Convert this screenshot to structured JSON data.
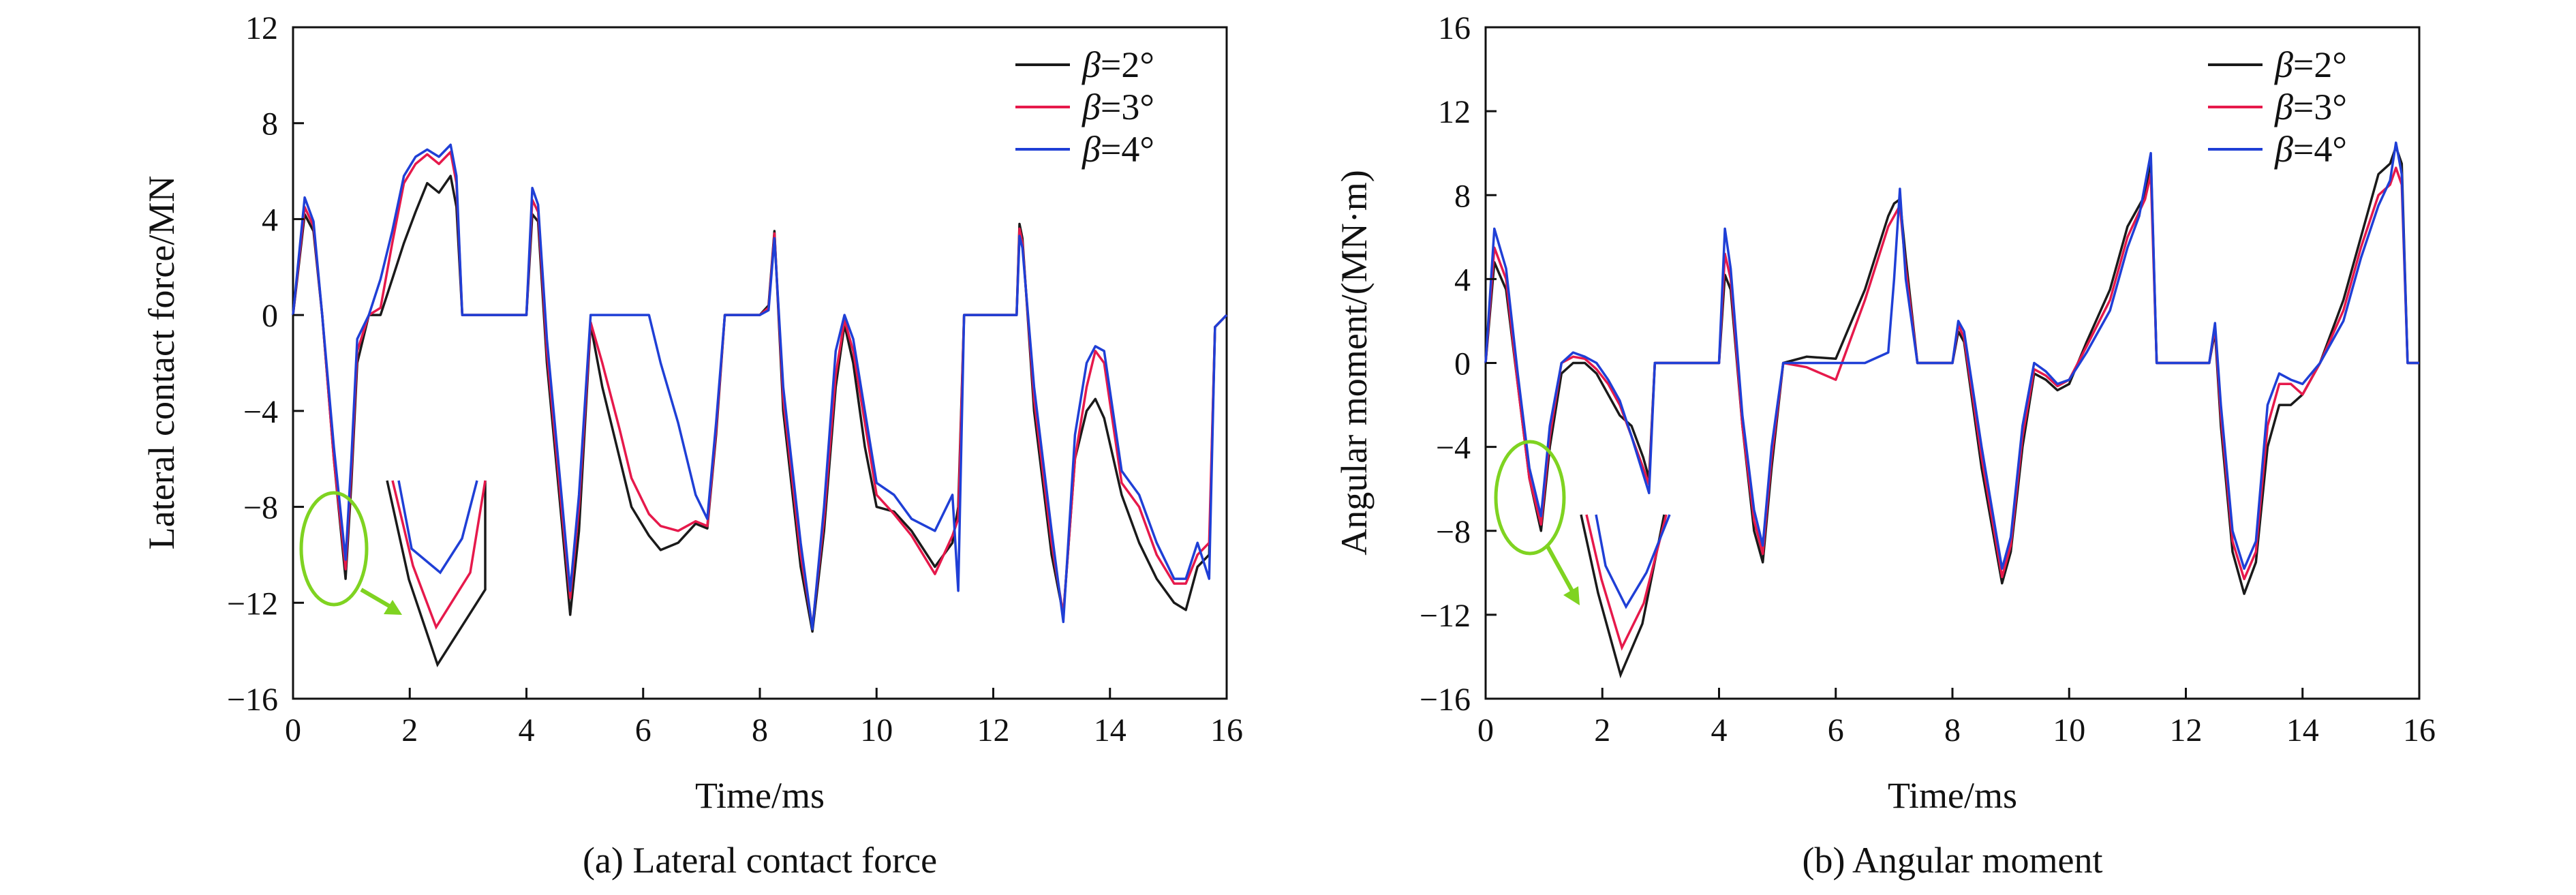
{
  "colors": {
    "s2": "#1a1a1a",
    "s3": "#e6194b",
    "s4": "#1f3fd6",
    "highlight": "#7fd321"
  },
  "chart_data": [
    {
      "type": "line",
      "caption": "(a) Lateral contact force",
      "xlabel": "Time/ms",
      "ylabel": "Lateral contact force/MN",
      "xlim": [
        0,
        16
      ],
      "ylim": [
        -16,
        12
      ],
      "xticks": [
        0,
        2,
        4,
        6,
        8,
        10,
        12,
        14,
        16
      ],
      "yticks": [
        -16,
        -12,
        -8,
        -4,
        0,
        4,
        8,
        12
      ],
      "legend_position": "top-right",
      "series": [
        {
          "name": "β=2°",
          "color": "#1a1a1a",
          "x": [
            0,
            0.2,
            0.35,
            0.5,
            0.7,
            0.9,
            1.0,
            1.1,
            1.3,
            1.5,
            1.7,
            1.9,
            2.1,
            2.3,
            2.5,
            2.7,
            2.8,
            2.9,
            3.0,
            3.5,
            4.0,
            4.1,
            4.2,
            4.35,
            4.6,
            4.75,
            4.9,
            5.1,
            5.3,
            5.6,
            5.8,
            6.1,
            6.3,
            6.6,
            6.9,
            7.1,
            7.25,
            7.4,
            8.0,
            8.15,
            8.25,
            8.4,
            8.7,
            8.9,
            9.1,
            9.3,
            9.45,
            9.6,
            9.8,
            10.0,
            10.3,
            10.6,
            11.0,
            11.3,
            11.4,
            11.5,
            12.0,
            12.4,
            12.45,
            12.5,
            12.7,
            13.0,
            13.2,
            13.4,
            13.6,
            13.75,
            13.9,
            14.2,
            14.5,
            14.8,
            15.1,
            15.3,
            15.5,
            15.7,
            15.8,
            16.0
          ],
          "y": [
            0,
            4.2,
            3.5,
            0,
            -6,
            -11,
            -7,
            -2,
            0,
            0,
            1.5,
            3,
            4.3,
            5.5,
            5.1,
            5.8,
            4.5,
            0,
            0,
            0,
            0,
            4.2,
            3.9,
            -2,
            -8.5,
            -12.5,
            -9,
            -0.4,
            -3,
            -6,
            -8,
            -9.2,
            -9.8,
            -9.5,
            -8.7,
            -8.9,
            -5,
            0,
            0,
            0.4,
            3.5,
            -4,
            -10.5,
            -13.2,
            -9,
            -3,
            -0.4,
            -2,
            -5.5,
            -8,
            -8.2,
            -9,
            -10.5,
            -9.5,
            -8,
            0,
            0,
            0,
            3.8,
            3.2,
            -4,
            -10,
            -12.5,
            -6,
            -4,
            -3.5,
            -4.3,
            -7.5,
            -9.5,
            -11,
            -12,
            -12.3,
            -10.5,
            -10,
            -0.5,
            0
          ]
        },
        {
          "name": "β=3°",
          "color": "#e6194b",
          "x": [
            0,
            0.2,
            0.35,
            0.5,
            0.7,
            0.9,
            1.0,
            1.1,
            1.3,
            1.5,
            1.7,
            1.9,
            2.1,
            2.3,
            2.5,
            2.7,
            2.8,
            2.9,
            3.0,
            3.5,
            4.0,
            4.1,
            4.2,
            4.35,
            4.6,
            4.75,
            4.9,
            5.1,
            5.3,
            5.6,
            5.8,
            6.1,
            6.3,
            6.6,
            6.9,
            7.1,
            7.25,
            7.4,
            8.0,
            8.15,
            8.25,
            8.4,
            8.7,
            8.9,
            9.1,
            9.3,
            9.45,
            9.6,
            9.8,
            10.0,
            10.3,
            10.6,
            11.0,
            11.3,
            11.4,
            11.5,
            12.0,
            12.4,
            12.45,
            12.5,
            12.7,
            13.0,
            13.2,
            13.4,
            13.6,
            13.75,
            13.9,
            14.2,
            14.5,
            14.8,
            15.1,
            15.3,
            15.5,
            15.7,
            15.8,
            16.0
          ],
          "y": [
            0,
            4.5,
            3.7,
            0,
            -6,
            -10.6,
            -6.5,
            -1.5,
            0,
            0.3,
            3,
            5.5,
            6.3,
            6.7,
            6.3,
            6.8,
            5.5,
            0,
            0,
            0,
            0,
            4.8,
            4.3,
            -1.5,
            -8,
            -11.8,
            -8,
            -0.3,
            -2,
            -4.8,
            -6.8,
            -8.3,
            -8.8,
            -9,
            -8.6,
            -8.8,
            -4.8,
            0,
            0,
            0.3,
            3.4,
            -3.5,
            -10,
            -13,
            -8.5,
            -2.5,
            -0.2,
            -1.5,
            -4.5,
            -7.5,
            -8.3,
            -9.2,
            -10.8,
            -9.2,
            -8.5,
            0,
            0,
            0,
            3.6,
            3,
            -3.5,
            -9.5,
            -12.5,
            -6,
            -3,
            -1.5,
            -2,
            -7,
            -8,
            -10,
            -11.2,
            -11.2,
            -10,
            -9.5,
            -0.5,
            0
          ]
        },
        {
          "name": "β=4°",
          "color": "#1f3fd6",
          "x": [
            0,
            0.2,
            0.35,
            0.5,
            0.7,
            0.9,
            1.0,
            1.1,
            1.3,
            1.5,
            1.7,
            1.9,
            2.1,
            2.3,
            2.5,
            2.7,
            2.8,
            2.9,
            3.0,
            3.5,
            4.0,
            4.1,
            4.2,
            4.35,
            4.6,
            4.75,
            4.9,
            5.1,
            5.3,
            5.6,
            5.8,
            6.1,
            6.3,
            6.6,
            6.9,
            7.1,
            7.25,
            7.4,
            8.0,
            8.15,
            8.25,
            8.4,
            8.7,
            8.9,
            9.1,
            9.3,
            9.45,
            9.6,
            9.8,
            10.0,
            10.3,
            10.6,
            11.0,
            11.3,
            11.4,
            11.5,
            12.0,
            12.4,
            12.45,
            12.5,
            12.7,
            13.0,
            13.2,
            13.4,
            13.6,
            13.75,
            13.9,
            14.2,
            14.5,
            14.8,
            15.1,
            15.3,
            15.5,
            15.7,
            15.8,
            16.0
          ],
          "y": [
            0,
            4.9,
            3.9,
            0,
            -5.5,
            -10.2,
            -6,
            -1,
            0,
            1.5,
            3.5,
            5.8,
            6.6,
            6.9,
            6.6,
            7.1,
            5.8,
            0,
            0,
            0,
            0,
            5.3,
            4.6,
            -1,
            -7.5,
            -11.5,
            -7.5,
            0,
            0,
            0,
            0,
            0,
            -2,
            -4.5,
            -7.5,
            -8.5,
            -4.5,
            0,
            0,
            0.2,
            3.2,
            -3,
            -9.5,
            -13.1,
            -8,
            -1.5,
            0,
            -1,
            -4,
            -7,
            -7.5,
            -8.5,
            -9,
            -7.5,
            -11.5,
            0,
            0,
            0,
            3.3,
            2.8,
            -3,
            -9,
            -12.8,
            -5,
            -2,
            -1.3,
            -1.5,
            -6.5,
            -7.5,
            -9.5,
            -11,
            -11,
            -9.5,
            -11,
            -0.5,
            0
          ]
        }
      ],
      "legend": [
        "β=2°",
        "β=3°",
        "β=4°"
      ]
    },
    {
      "type": "line",
      "caption": "(b) Angular moment",
      "xlabel": "Time/ms",
      "ylabel": "Angular moment/(MN·m)",
      "xlim": [
        0,
        16
      ],
      "ylim": [
        -16,
        16
      ],
      "xticks": [
        0,
        2,
        4,
        6,
        8,
        10,
        12,
        14,
        16
      ],
      "yticks": [
        -16,
        -12,
        -8,
        -4,
        0,
        4,
        8,
        12,
        16
      ],
      "legend_position": "top-right",
      "series": [
        {
          "name": "β=2°",
          "color": "#1a1a1a",
          "x": [
            0,
            0.15,
            0.35,
            0.55,
            0.75,
            0.95,
            1.1,
            1.3,
            1.5,
            1.7,
            1.9,
            2.1,
            2.3,
            2.5,
            2.7,
            2.8,
            2.9,
            3.0,
            4.0,
            4.1,
            4.2,
            4.4,
            4.6,
            4.75,
            4.9,
            5.1,
            5.5,
            6.0,
            6.5,
            6.9,
            7.0,
            7.1,
            7.2,
            7.4,
            8.0,
            8.1,
            8.2,
            8.5,
            8.85,
            9.0,
            9.2,
            9.4,
            9.6,
            9.8,
            10.0,
            10.3,
            10.7,
            11.0,
            11.2,
            11.3,
            11.4,
            11.5,
            12.0,
            12.4,
            12.5,
            12.6,
            12.8,
            13.0,
            13.2,
            13.4,
            13.6,
            13.8,
            14.0,
            14.3,
            14.7,
            15.0,
            15.3,
            15.5,
            15.6,
            15.7,
            15.8,
            16.0
          ],
          "y": [
            0,
            4.8,
            3.5,
            -1,
            -5.5,
            -8,
            -4,
            -0.5,
            0,
            0,
            -0.5,
            -1.5,
            -2.5,
            -3,
            -4.5,
            -5.5,
            0,
            0,
            0,
            4.2,
            3.5,
            -3,
            -8,
            -9.5,
            -5,
            0,
            0.3,
            0.2,
            3.5,
            7,
            7.6,
            7.8,
            5,
            0,
            0,
            1.5,
            1,
            -5,
            -10.5,
            -9,
            -4,
            -0.5,
            -0.8,
            -1.3,
            -1,
            1,
            3.5,
            6.5,
            7.5,
            8,
            9.7,
            0,
            0,
            0,
            1.5,
            -3,
            -9,
            -11,
            -9.5,
            -4,
            -2,
            -2,
            -1.5,
            0,
            3,
            6,
            9,
            9.5,
            10.3,
            9.5,
            0,
            0
          ]
        },
        {
          "name": "β=3°",
          "color": "#e6194b",
          "x": [
            0,
            0.15,
            0.35,
            0.55,
            0.75,
            0.95,
            1.1,
            1.3,
            1.5,
            1.7,
            1.9,
            2.1,
            2.3,
            2.5,
            2.7,
            2.8,
            2.9,
            3.0,
            4.0,
            4.1,
            4.2,
            4.4,
            4.6,
            4.75,
            4.9,
            5.1,
            5.5,
            6.0,
            6.5,
            6.9,
            7.0,
            7.1,
            7.2,
            7.4,
            8.0,
            8.1,
            8.2,
            8.5,
            8.85,
            9.0,
            9.2,
            9.4,
            9.6,
            9.8,
            10.0,
            10.3,
            10.7,
            11.0,
            11.2,
            11.3,
            11.4,
            11.5,
            12.0,
            12.4,
            12.5,
            12.6,
            12.8,
            13.0,
            13.2,
            13.4,
            13.6,
            13.8,
            14.0,
            14.3,
            14.7,
            15.0,
            15.3,
            15.5,
            15.6,
            15.7,
            15.8,
            16.0
          ],
          "y": [
            0,
            5.5,
            4,
            -1,
            -5.5,
            -7.7,
            -3.5,
            0,
            0.3,
            0.2,
            -0.3,
            -1,
            -2,
            -3.5,
            -5,
            -5.8,
            0,
            0,
            0,
            5.2,
            4,
            -3,
            -7.5,
            -9.1,
            -4.5,
            0,
            -0.2,
            -0.8,
            3,
            6.5,
            7,
            7.5,
            4.5,
            0,
            0,
            1.8,
            1.2,
            -4.5,
            -10.2,
            -8.7,
            -3.5,
            -0.3,
            -0.6,
            -1.1,
            -0.8,
            0.8,
            3,
            6,
            7.2,
            7.8,
            9,
            0,
            0,
            0,
            1.7,
            -2.5,
            -8.5,
            -10.3,
            -9,
            -3,
            -1,
            -1,
            -1.5,
            0,
            2.5,
            5.5,
            8,
            8.5,
            9.3,
            8.5,
            0,
            0
          ]
        },
        {
          "name": "β=4°",
          "color": "#1f3fd6",
          "x": [
            0,
            0.15,
            0.35,
            0.55,
            0.75,
            0.95,
            1.1,
            1.3,
            1.5,
            1.7,
            1.9,
            2.1,
            2.3,
            2.5,
            2.7,
            2.8,
            2.9,
            3.0,
            4.0,
            4.1,
            4.2,
            4.4,
            4.6,
            4.75,
            4.9,
            5.1,
            5.5,
            6.0,
            6.5,
            6.9,
            7.0,
            7.1,
            7.2,
            7.4,
            8.0,
            8.1,
            8.2,
            8.5,
            8.85,
            9.0,
            9.2,
            9.4,
            9.6,
            9.8,
            10.0,
            10.3,
            10.7,
            11.0,
            11.2,
            11.3,
            11.4,
            11.5,
            12.0,
            12.4,
            12.5,
            12.6,
            12.8,
            13.0,
            13.2,
            13.4,
            13.6,
            13.8,
            14.0,
            14.3,
            14.7,
            15.0,
            15.3,
            15.5,
            15.6,
            15.7,
            15.8,
            16.0
          ],
          "y": [
            0,
            6.4,
            4.5,
            -0.5,
            -5,
            -7.3,
            -3,
            0,
            0.5,
            0.3,
            0,
            -0.8,
            -1.8,
            -3.5,
            -5.3,
            -6.2,
            0,
            0,
            0,
            6.4,
            4.5,
            -2.5,
            -7,
            -8.7,
            -4,
            0,
            0,
            0,
            0,
            0.5,
            4,
            8.3,
            4,
            0,
            0,
            2,
            1.5,
            -4,
            -9.8,
            -8.3,
            -3,
            0,
            -0.4,
            -1,
            -0.8,
            0.5,
            2.5,
            5.5,
            7,
            8.5,
            10,
            0,
            0,
            0,
            1.9,
            -2,
            -8,
            -9.8,
            -8.5,
            -2,
            -0.5,
            -0.8,
            -1,
            0,
            2,
            5,
            7.5,
            8.7,
            10.5,
            9,
            0,
            0
          ]
        }
      ],
      "legend": [
        "β=2°",
        "β=3°",
        "β=4°"
      ]
    }
  ]
}
